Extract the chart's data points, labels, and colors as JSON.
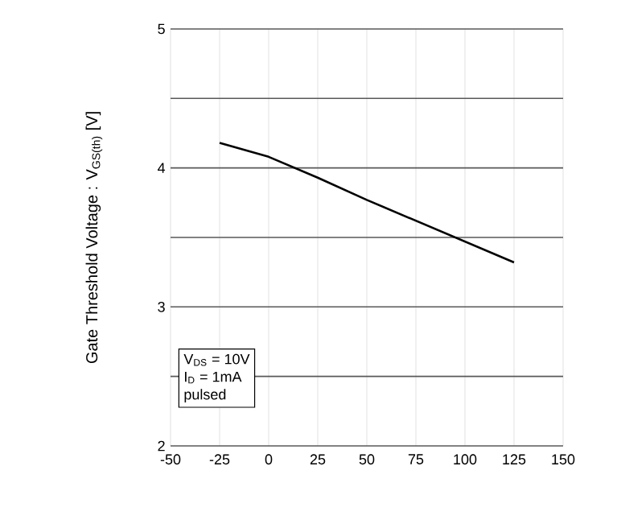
{
  "chart_data": {
    "type": "line",
    "ylabel": "Gate Threshold Voltage : V$_{GS(th)}$ [V]",
    "x": [
      -25,
      0,
      25,
      50,
      75,
      100,
      125
    ],
    "series": [
      {
        "color": "#000000",
        "values": [
          4.18,
          4.08,
          3.93,
          3.77,
          3.62,
          3.47,
          3.32
        ]
      }
    ],
    "xlim": [
      -50,
      150
    ],
    "xticks": [
      -50,
      -25,
      0,
      25,
      50,
      75,
      100,
      125,
      150
    ],
    "ylim": [
      2,
      5
    ],
    "yticks": [
      2,
      {
        "value": 2.5,
        "label": null
      },
      3,
      {
        "value": 3.5,
        "label": null
      },
      4,
      {
        "value": 4.5,
        "label": null
      },
      5
    ],
    "grid": true,
    "marker": "none",
    "line_style": "solid",
    "annotations": [
      "V$_{DS}$ = 10V",
      "I$_{D}$ = 1mA",
      "pulsed"
    ]
  }
}
